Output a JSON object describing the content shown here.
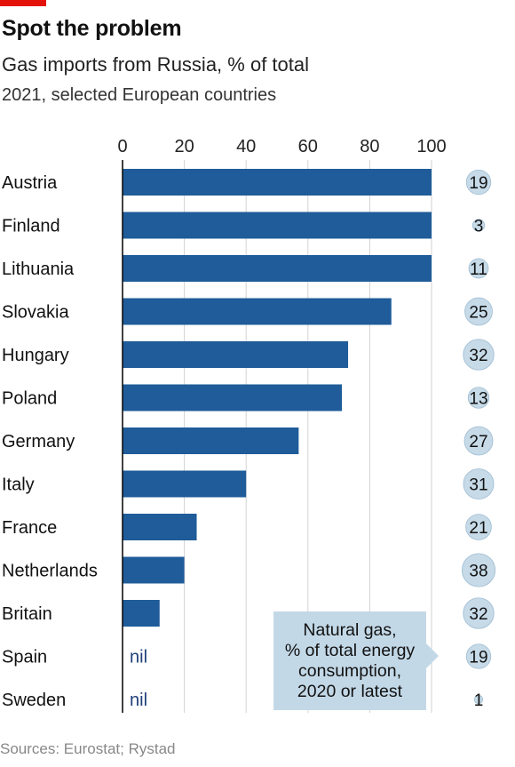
{
  "header": {
    "title": "Spot the problem",
    "subtitle": "Gas imports from Russia, % of total",
    "subsubtitle": "2021, selected European countries"
  },
  "note": {
    "line1": "Natural gas,",
    "line2": "% of total energy",
    "line3": "consumption,",
    "line4": "2020 or latest"
  },
  "source": "Sources: Eurostat; Rystad",
  "nil_label": "nil",
  "colors": {
    "bar": "#1f5c99",
    "bubble": "#b6d0e2",
    "bubble_edge": "#9fbdd3",
    "nil_text": "#1f3f7a",
    "brand": "#e3120b"
  },
  "chart_data": {
    "type": "bar",
    "orientation": "horizontal",
    "xlim": [
      0,
      100
    ],
    "xticks": [
      0,
      20,
      40,
      60,
      80,
      100
    ],
    "categories": [
      "Austria",
      "Finland",
      "Lithuania",
      "Slovakia",
      "Hungary",
      "Poland",
      "Germany",
      "Italy",
      "France",
      "Netherlands",
      "Britain",
      "Spain",
      "Sweden"
    ],
    "values": [
      100,
      100,
      100,
      87,
      73,
      71,
      57,
      40,
      24,
      20,
      12,
      0,
      0
    ],
    "nil": [
      false,
      false,
      false,
      false,
      false,
      false,
      false,
      false,
      false,
      false,
      false,
      true,
      true
    ],
    "bubbles": [
      19,
      3,
      11,
      25,
      32,
      13,
      27,
      31,
      21,
      38,
      32,
      19,
      1
    ]
  }
}
